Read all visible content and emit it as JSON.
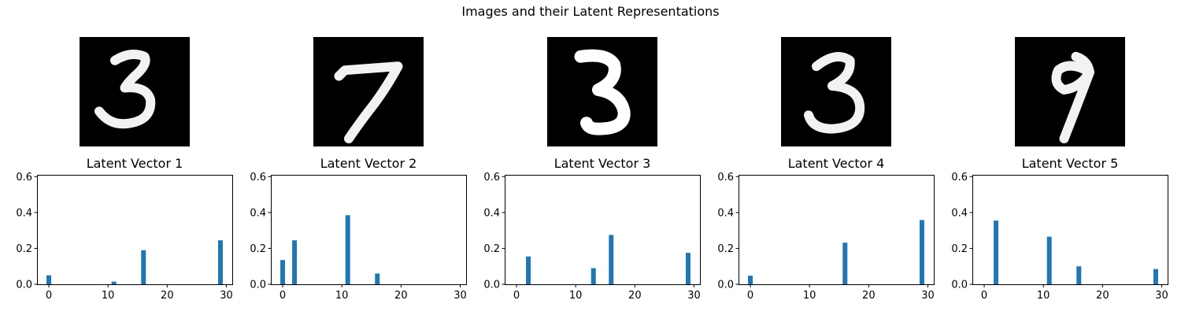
{
  "suptitle": "Images and their Latent Representations",
  "images": [
    {
      "digit": "3"
    },
    {
      "digit": "7"
    },
    {
      "digit": "3"
    },
    {
      "digit": "3"
    },
    {
      "digit": "9"
    }
  ],
  "chart_data": [
    {
      "type": "bar",
      "title": "Latent Vector 1",
      "xlim": [
        -2,
        31
      ],
      "ylim": [
        0,
        0.61
      ],
      "xticks": [
        0,
        10,
        20,
        30
      ],
      "yticks": [
        0.0,
        0.2,
        0.4,
        0.6
      ],
      "x": [
        0,
        11,
        16,
        29
      ],
      "values": [
        0.05,
        0.015,
        0.19,
        0.245
      ]
    },
    {
      "type": "bar",
      "title": "Latent Vector 2",
      "xlim": [
        -2,
        31
      ],
      "ylim": [
        0,
        0.61
      ],
      "xticks": [
        0,
        10,
        20,
        30
      ],
      "yticks": [
        0.0,
        0.2,
        0.4,
        0.6
      ],
      "x": [
        0,
        2,
        11,
        16
      ],
      "values": [
        0.135,
        0.245,
        0.385,
        0.06
      ]
    },
    {
      "type": "bar",
      "title": "Latent Vector 3",
      "xlim": [
        -2,
        31
      ],
      "ylim": [
        0,
        0.61
      ],
      "xticks": [
        0,
        10,
        20,
        30
      ],
      "yticks": [
        0.0,
        0.2,
        0.4,
        0.6
      ],
      "x": [
        2,
        13,
        16,
        29
      ],
      "values": [
        0.155,
        0.09,
        0.275,
        0.175
      ]
    },
    {
      "type": "bar",
      "title": "Latent Vector 4",
      "xlim": [
        -2,
        31
      ],
      "ylim": [
        0,
        0.61
      ],
      "xticks": [
        0,
        10,
        20,
        30
      ],
      "yticks": [
        0.0,
        0.2,
        0.4,
        0.6
      ],
      "x": [
        0,
        16,
        29
      ],
      "values": [
        0.048,
        0.232,
        0.358
      ]
    },
    {
      "type": "bar",
      "title": "Latent Vector 5",
      "xlim": [
        -2,
        31
      ],
      "ylim": [
        0,
        0.61
      ],
      "xticks": [
        0,
        10,
        20,
        30
      ],
      "yticks": [
        0.0,
        0.2,
        0.4,
        0.6
      ],
      "x": [
        2,
        11,
        16,
        29
      ],
      "values": [
        0.355,
        0.265,
        0.1,
        0.085
      ]
    }
  ],
  "colors": {
    "bar": "#1f77b4",
    "image_bg": "#000000",
    "stroke": "#ffffff"
  }
}
